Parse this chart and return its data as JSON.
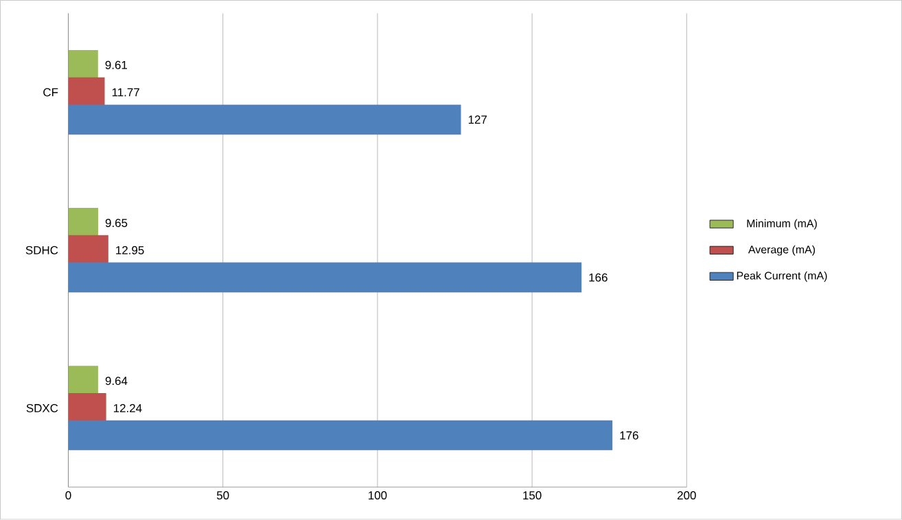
{
  "chart_data": {
    "type": "bar",
    "orientation": "horizontal",
    "categories": [
      "CF",
      "SDHC",
      "SDXC"
    ],
    "series": [
      {
        "name": "Minimum (mA)",
        "color": "#9bbb59",
        "values": [
          9.61,
          9.65,
          9.64
        ]
      },
      {
        "name": "Average (mA)",
        "color": "#c0504d",
        "values": [
          11.77,
          12.95,
          12.24
        ]
      },
      {
        "name": "Peak Current (mA)",
        "color": "#4f81bd",
        "values": [
          127,
          166,
          176
        ]
      }
    ],
    "xlim": [
      0,
      200
    ],
    "xticks": [
      0,
      50,
      100,
      150,
      200
    ],
    "grid": "x",
    "legend": "right",
    "data_labels": true
  }
}
